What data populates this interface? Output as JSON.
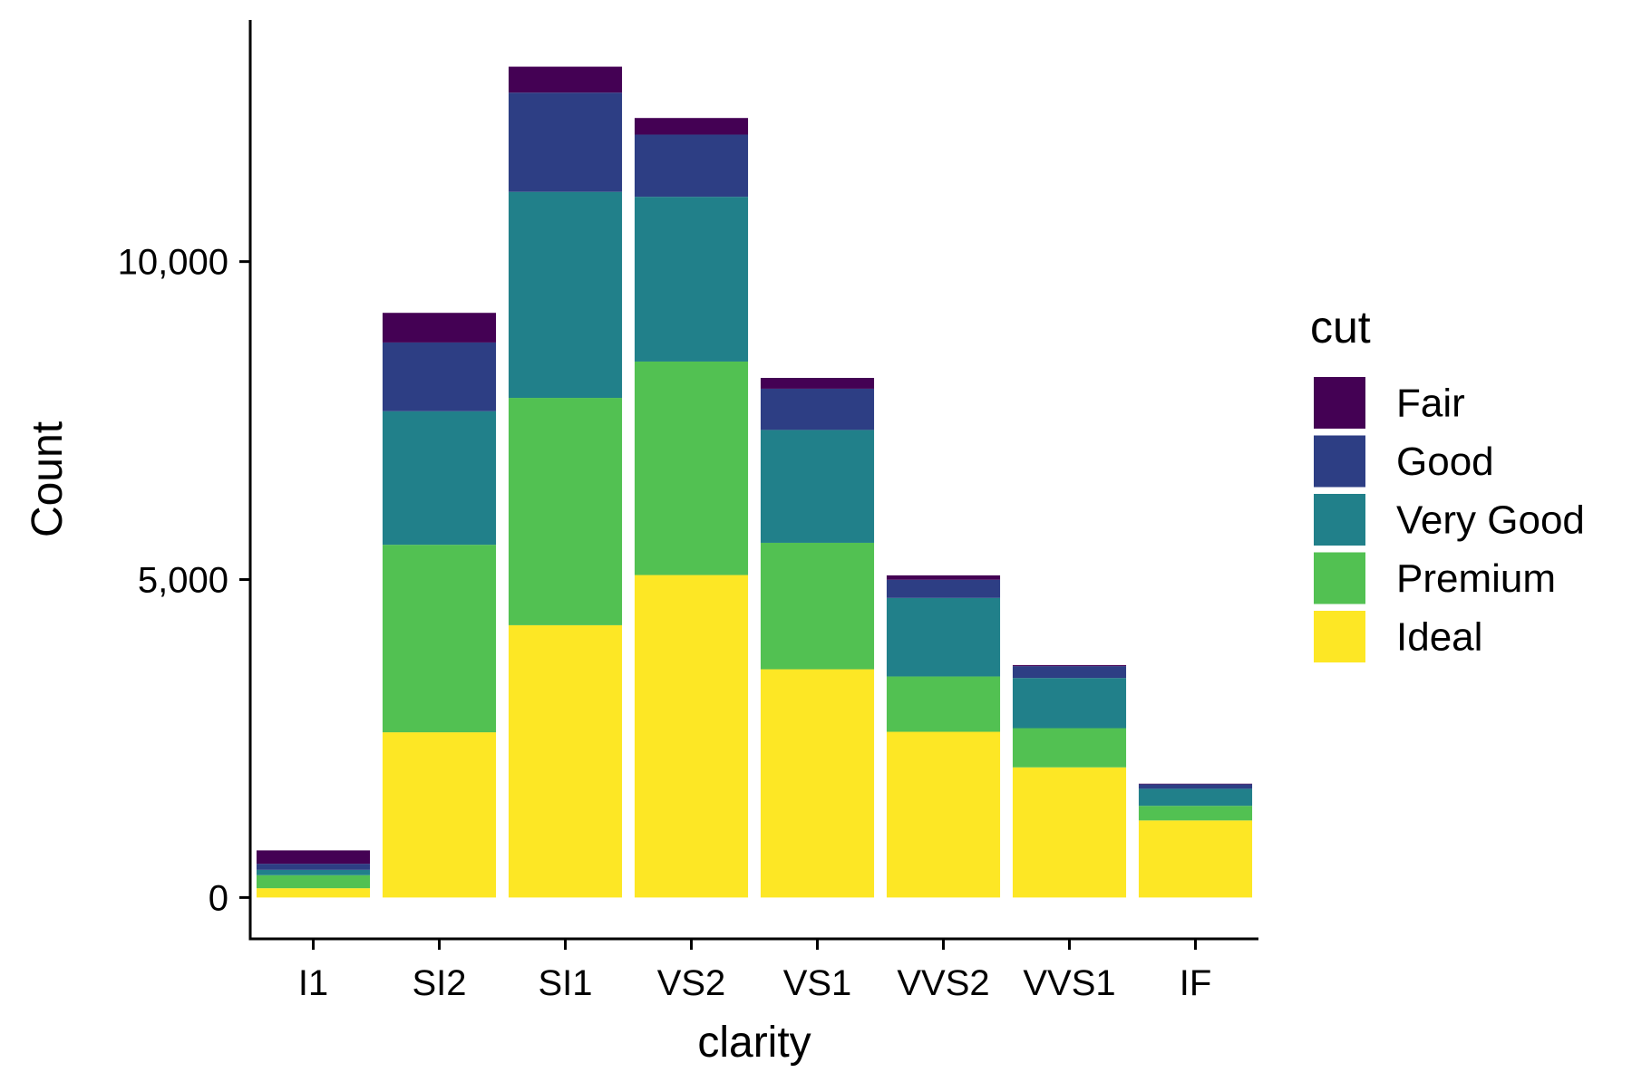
{
  "chart_data": {
    "type": "bar",
    "stacked": true,
    "xlabel": "clarity",
    "ylabel": "Count",
    "categories": [
      "I1",
      "SI2",
      "SI1",
      "VS2",
      "VS1",
      "VVS2",
      "VVS1",
      "IF"
    ],
    "ylim": [
      -650,
      13800
    ],
    "yticks": [
      0,
      5000,
      10000
    ],
    "ytick_labels": [
      "0",
      "5,000",
      "10,000"
    ],
    "legend_title": "cut",
    "legend_position": "right",
    "grid": false,
    "series": [
      {
        "name": "Fair",
        "color": "#440154",
        "values": [
          210,
          466,
          408,
          261,
          170,
          69,
          17,
          9
        ]
      },
      {
        "name": "Good",
        "color": "#2D3E84",
        "values": [
          96,
          1081,
          1560,
          978,
          648,
          286,
          186,
          71
        ]
      },
      {
        "name": "Very Good",
        "color": "#21808A",
        "values": [
          84,
          2100,
          3240,
          2591,
          1775,
          1235,
          789,
          268
        ]
      },
      {
        "name": "Premium",
        "color": "#52C152",
        "values": [
          205,
          2949,
          3575,
          3357,
          1989,
          870,
          616,
          230
        ]
      },
      {
        "name": "Ideal",
        "color": "#FDE725",
        "values": [
          146,
          2598,
          4282,
          5071,
          3589,
          2606,
          2047,
          1212
        ]
      }
    ]
  }
}
